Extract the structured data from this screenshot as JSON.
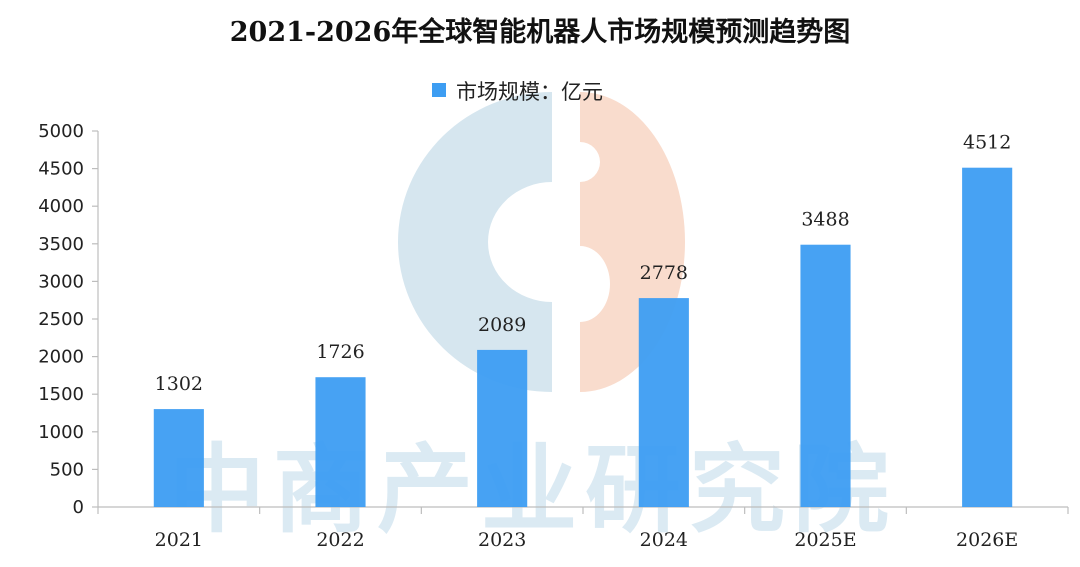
{
  "chart_data": {
    "type": "bar",
    "title": "2021-2026年全球智能机器人市场规模预测趋势图",
    "legend": {
      "label": "市场规模：亿元",
      "placement": "top-center"
    },
    "categories": [
      "2021",
      "2022",
      "2023",
      "2024",
      "2025E",
      "2026E"
    ],
    "series": [
      {
        "name": "市场规模：亿元",
        "values": [
          1302,
          1726,
          2089,
          2778,
          3488,
          4512
        ]
      }
    ],
    "ylim": [
      0,
      5000
    ],
    "yticks": [
      0,
      500,
      1000,
      1500,
      2000,
      2500,
      3000,
      3500,
      4000,
      4500,
      5000
    ],
    "grid": false,
    "colors": {
      "bar": "#3d9df2",
      "watermark_left": "#d6e6ef",
      "watermark_right": "#f9dccd"
    },
    "watermark": "中商产业研究院"
  }
}
